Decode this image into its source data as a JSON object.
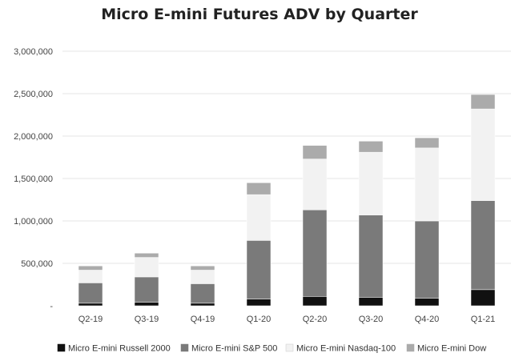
{
  "chart_data": {
    "type": "bar",
    "stacked": true,
    "title": "Micro E-mini Futures ADV by Quarter",
    "xlabel": "",
    "ylabel": "",
    "ylim": [
      0,
      3000000
    ],
    "yticks": [
      0,
      500000,
      1000000,
      1500000,
      2000000,
      2500000,
      3000000
    ],
    "ytick_labels": [
      "-",
      "500,000",
      "1,000,000",
      "1,500,000",
      "2,000,000",
      "2,500,000",
      "3,000,000"
    ],
    "grid": true,
    "legend_position": "bottom",
    "categories": [
      "Q2-19",
      "Q3-19",
      "Q4-19",
      "Q1-20",
      "Q2-20",
      "Q3-20",
      "Q4-20",
      "Q1-21"
    ],
    "series": [
      {
        "name": "Micro E-mini Russell 2000",
        "color": "#111111",
        "values": [
          30000,
          40000,
          30000,
          80000,
          110000,
          100000,
          90000,
          190000
        ]
      },
      {
        "name": "Micro E-mini S&P 500",
        "color": "#7a7a7a",
        "values": [
          240000,
          300000,
          230000,
          690000,
          1020000,
          970000,
          910000,
          1050000
        ]
      },
      {
        "name": "Micro E-mini Nasdaq-100",
        "color": "#f2f2f2",
        "values": [
          150000,
          230000,
          160000,
          540000,
          600000,
          740000,
          860000,
          1080000
        ]
      },
      {
        "name": "Micro E-mini Dow",
        "color": "#ababab",
        "values": [
          50000,
          50000,
          50000,
          140000,
          160000,
          130000,
          120000,
          170000
        ]
      }
    ]
  }
}
